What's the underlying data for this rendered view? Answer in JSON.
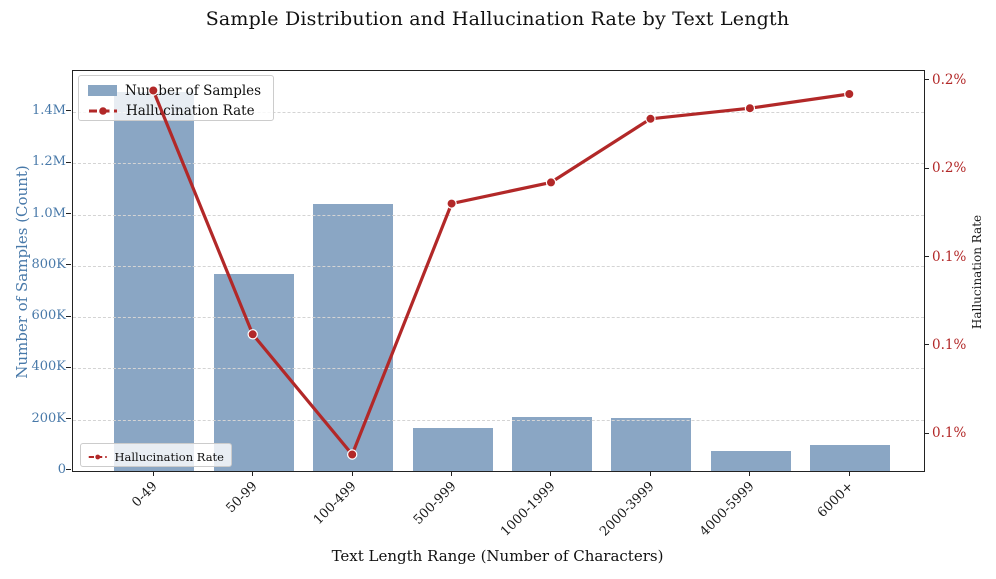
{
  "title": "Sample Distribution and Hallucination Rate by Text Length",
  "chart_data": {
    "type": "bar",
    "subtype": "bar+line dual-axis",
    "title": "Sample Distribution and Hallucination Rate by Text Length",
    "xlabel": "Text Length Range (Number of Characters)",
    "ylabel_left": "Number of Samples (Count)",
    "ylabel_right": "Hallucination Rate",
    "categories": [
      "0-49",
      "50-99",
      "100-499",
      "500-999",
      "1000-1999",
      "2000-3999",
      "4000-5999",
      "6000+"
    ],
    "series": [
      {
        "name": "Number of Samples",
        "type": "bar",
        "axis": "left",
        "values": [
          1480000,
          770000,
          1040000,
          168000,
          212000,
          205000,
          77000,
          100000
        ]
      },
      {
        "name": "Hallucination Rate",
        "type": "line",
        "axis": "right",
        "unit": "%",
        "values": [
          0.197,
          0.128,
          0.094,
          0.165,
          0.171,
          0.189,
          0.192,
          0.196
        ]
      }
    ],
    "left_axis": {
      "range": [
        0,
        1560000
      ],
      "ticks": [
        {
          "v": 0,
          "label": "0"
        },
        {
          "v": 200000,
          "label": "200K"
        },
        {
          "v": 400000,
          "label": "400K"
        },
        {
          "v": 600000,
          "label": "600K"
        },
        {
          "v": 800000,
          "label": "800K"
        },
        {
          "v": 1000000,
          "label": "1.0M"
        },
        {
          "v": 1200000,
          "label": "1.2M"
        },
        {
          "v": 1400000,
          "label": "1.4M"
        }
      ],
      "color": "#4879a9"
    },
    "right_axis": {
      "range": [
        0.0896,
        0.2028
      ],
      "ticks": [
        {
          "v": 0.2,
          "label": "0.2%"
        },
        {
          "v": 0.175,
          "label": "0.2%"
        },
        {
          "v": 0.15,
          "label": "0.1%"
        },
        {
          "v": 0.125,
          "label": "0.1%"
        },
        {
          "v": 0.1,
          "label": "0.1%"
        }
      ],
      "color": "#b22828"
    },
    "grid": {
      "axis": "y",
      "style": "dashed",
      "color": "#d4d4d4",
      "over_bars": true
    },
    "colors": {
      "bar": "#89a6c3",
      "line": "#b22828",
      "marker_edge": "#ffffff"
    },
    "legend_top": {
      "position": "upper left",
      "items": [
        "Number of Samples",
        "Hallucination Rate"
      ]
    },
    "legend_bottom": {
      "position": "lower left",
      "items": [
        "Hallucination Rate"
      ]
    }
  }
}
